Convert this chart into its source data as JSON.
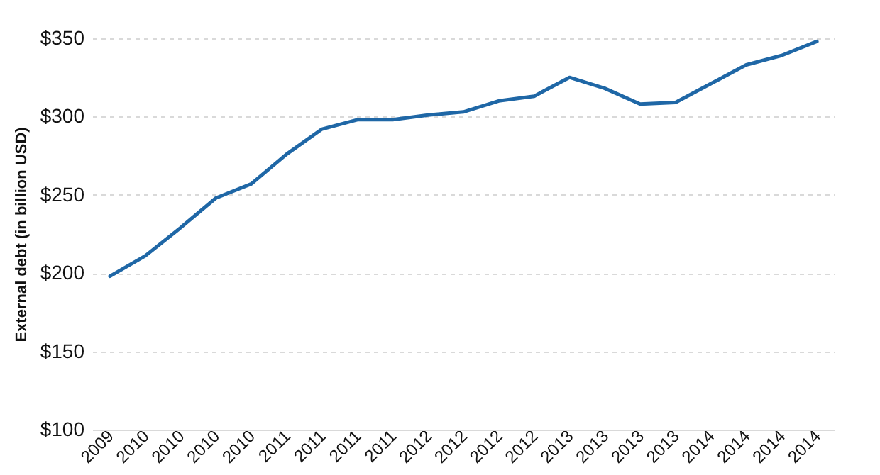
{
  "chart_data": {
    "type": "line",
    "ylabel": "External debt (in billion USD)",
    "categories": [
      "2009",
      "2010",
      "2010",
      "2010",
      "2010",
      "2011",
      "2011",
      "2011",
      "2011",
      "2012",
      "2012",
      "2012",
      "2012",
      "2013",
      "2013",
      "2013",
      "2013",
      "2014",
      "2014",
      "2014",
      "2014"
    ],
    "series": [
      {
        "color": "#1f67a6",
        "values": [
          198,
          211,
          229,
          248,
          257,
          276,
          292,
          298,
          298,
          301,
          303,
          310,
          313,
          325,
          318,
          308,
          309,
          321,
          333,
          339,
          348
        ]
      }
    ],
    "ylim": [
      100,
      350
    ],
    "yticks": [
      {
        "value": 100,
        "label": "$100"
      },
      {
        "value": 150,
        "label": "$150"
      },
      {
        "value": 200,
        "label": "$200"
      },
      {
        "value": 250,
        "label": "$250"
      },
      {
        "value": 300,
        "label": "$300"
      },
      {
        "value": 350,
        "label": "$350"
      }
    ],
    "grid": "y",
    "marker": "none",
    "line_style": "solid"
  }
}
